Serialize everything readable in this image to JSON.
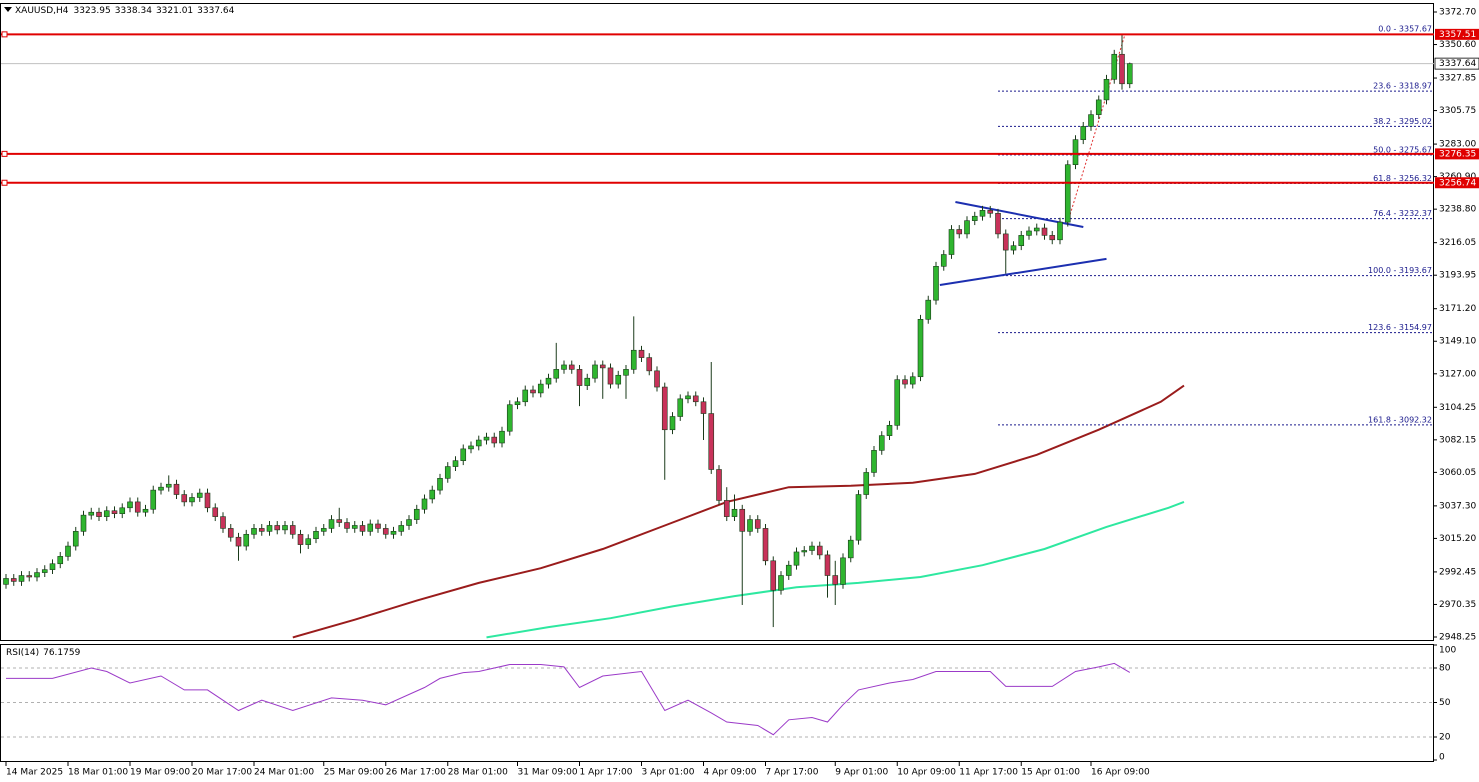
{
  "chart_data": {
    "type": "candlestick",
    "symbol": "XAUUSD,H4",
    "open": [
      2984,
      2988,
      2986,
      2990,
      2989,
      2992,
      2994,
      2998,
      3003,
      3010,
      3020,
      3031,
      3033,
      3030,
      3034,
      3032,
      3036,
      3040,
      3033,
      3035,
      3048,
      3050,
      3052,
      3045,
      3040,
      3043,
      3046,
      3036,
      3030,
      3022,
      3016,
      3010,
      3018,
      3022,
      3020,
      3024,
      3021,
      3024,
      3018,
      3011,
      3015,
      3020,
      3022,
      3028,
      3026,
      3022,
      3024,
      3020,
      3025,
      3022,
      3018,
      3020,
      3024,
      3028,
      3035,
      3042,
      3048,
      3056,
      3064,
      3068,
      3076,
      3078,
      3082,
      3084,
      3080,
      3088,
      3106,
      3108,
      3116,
      3114,
      3120,
      3124,
      3130,
      3133,
      3130,
      3119,
      3124,
      3133,
      3131,
      3120,
      3126,
      3130,
      3143,
      3138,
      3129,
      3118,
      3089,
      3098,
      3110,
      3112,
      3108,
      3100,
      3062,
      3041,
      3030,
      3035,
      3020,
      3028,
      3022,
      3000,
      2980,
      2990,
      2997,
      3006,
      3007,
      3010,
      3004,
      2990,
      2984,
      3002,
      3014,
      3045,
      3060,
      3075,
      3085,
      3092,
      3123,
      3120,
      3125,
      3164,
      3177,
      3200,
      3208,
      3225,
      3222,
      3231,
      3234,
      3238,
      3236,
      3222,
      3211,
      3214,
      3221,
      3224,
      3226,
      3221,
      3218,
      3230,
      3269,
      3286,
      3295,
      3303,
      3313,
      3327,
      3344,
      3323.95
    ],
    "high": [
      2991,
      2991,
      2993,
      2993,
      2995,
      2997,
      3001,
      3006,
      3013,
      3023,
      3034,
      3036,
      3036,
      3037,
      3037,
      3039,
      3043,
      3043,
      3038,
      3051,
      3053,
      3058,
      3055,
      3048,
      3046,
      3049,
      3049,
      3039,
      3033,
      3025,
      3019,
      3021,
      3025,
      3025,
      3027,
      3027,
      3027,
      3027,
      3021,
      3018,
      3023,
      3025,
      3031,
      3036,
      3029,
      3027,
      3027,
      3028,
      3028,
      3025,
      3023,
      3027,
      3031,
      3038,
      3045,
      3051,
      3059,
      3067,
      3071,
      3079,
      3081,
      3085,
      3087,
      3087,
      3091,
      3109,
      3111,
      3119,
      3119,
      3123,
      3127,
      3148,
      3136,
      3136,
      3133,
      3127,
      3136,
      3136,
      3134,
      3129,
      3133,
      3166,
      3146,
      3141,
      3132,
      3121,
      3101,
      3113,
      3115,
      3115,
      3111,
      3135,
      3065,
      3050,
      3045,
      3038,
      3031,
      3031,
      3025,
      3003,
      2993,
      3000,
      3009,
      3010,
      3013,
      3013,
      3007,
      3000,
      3005,
      3017,
      3048,
      3063,
      3078,
      3088,
      3095,
      3126,
      3126,
      3128,
      3167,
      3180,
      3203,
      3211,
      3228,
      3228,
      3234,
      3237,
      3241,
      3241,
      3239,
      3225,
      3217,
      3224,
      3227,
      3229,
      3229,
      3224,
      3233,
      3272,
      3289,
      3298,
      3306,
      3316,
      3330,
      3347,
      3357.51,
      3338.34
    ],
    "low": [
      2981,
      2983,
      2983,
      2986,
      2986,
      2989,
      2991,
      2995,
      3000,
      3007,
      3017,
      3028,
      3027,
      3027,
      3029,
      3029,
      3033,
      3030,
      3030,
      3032,
      3045,
      3047,
      3042,
      3037,
      3037,
      3040,
      3033,
      3027,
      3019,
      3013,
      3000,
      3007,
      3015,
      3017,
      3017,
      3018,
      3018,
      3015,
      3005,
      3008,
      3012,
      3017,
      3019,
      3023,
      3019,
      3019,
      3017,
      3017,
      3019,
      3015,
      3015,
      3017,
      3021,
      3025,
      3032,
      3039,
      3045,
      3053,
      3061,
      3065,
      3073,
      3075,
      3079,
      3077,
      3077,
      3085,
      3103,
      3105,
      3111,
      3111,
      3117,
      3121,
      3127,
      3127,
      3105,
      3116,
      3121,
      3110,
      3117,
      3117,
      3110,
      3127,
      3135,
      3126,
      3115,
      3055,
      3086,
      3095,
      3107,
      3105,
      3082,
      3059,
      3038,
      3027,
      3027,
      2970,
      3017,
      3019,
      2997,
      2955,
      2977,
      2987,
      2994,
      3003,
      3004,
      3001,
      2975,
      2970,
      2981,
      2999,
      3011,
      3042,
      3057,
      3072,
      3082,
      3089,
      3117,
      3117,
      3122,
      3161,
      3174,
      3197,
      3205,
      3219,
      3219,
      3228,
      3231,
      3233,
      3219,
      3195,
      3208,
      3211,
      3218,
      3221,
      3218,
      3215,
      3215,
      3227,
      3266,
      3283,
      3292,
      3300,
      3310,
      3324,
      3320,
      3321.01
    ],
    "close": [
      2988,
      2986,
      2990,
      2989,
      2992,
      2994,
      2998,
      3003,
      3010,
      3020,
      3031,
      3033,
      3030,
      3034,
      3032,
      3036,
      3040,
      3033,
      3035,
      3048,
      3050,
      3052,
      3045,
      3040,
      3043,
      3046,
      3036,
      3030,
      3022,
      3016,
      3010,
      3018,
      3022,
      3020,
      3024,
      3021,
      3024,
      3018,
      3011,
      3015,
      3020,
      3022,
      3028,
      3026,
      3022,
      3024,
      3020,
      3025,
      3022,
      3018,
      3020,
      3024,
      3028,
      3035,
      3042,
      3048,
      3056,
      3064,
      3068,
      3076,
      3078,
      3082,
      3084,
      3080,
      3088,
      3106,
      3108,
      3116,
      3114,
      3120,
      3124,
      3130,
      3133,
      3130,
      3119,
      3124,
      3133,
      3131,
      3120,
      3126,
      3130,
      3143,
      3138,
      3129,
      3118,
      3089,
      3098,
      3110,
      3112,
      3108,
      3100,
      3062,
      3041,
      3030,
      3035,
      3020,
      3028,
      3022,
      3000,
      2980,
      2990,
      2997,
      3006,
      3007,
      3010,
      3004,
      2990,
      2984,
      3002,
      3014,
      3045,
      3060,
      3075,
      3085,
      3092,
      3123,
      3120,
      3125,
      3164,
      3177,
      3200,
      3208,
      3225,
      3222,
      3231,
      3234,
      3238,
      3236,
      3222,
      3211,
      3214,
      3221,
      3224,
      3226,
      3221,
      3218,
      3230,
      3269,
      3286,
      3295,
      3303,
      3313,
      3327,
      3344,
      3323.95,
      3337.64
    ],
    "up_color": "#2fb52f",
    "down_color": "#c8325a",
    "ylim": [
      2948.25,
      3372.7
    ],
    "yticks": [
      {
        "value": 3372.7,
        "label": "3372.70"
      },
      {
        "value": 3350.6,
        "label": "3350.60"
      },
      {
        "value": 3327.85,
        "label": "3327.85"
      },
      {
        "value": 3305.75,
        "label": "3305.75"
      },
      {
        "value": 3283,
        "label": "3283.00"
      },
      {
        "value": 3260.9,
        "label": "3260.90"
      },
      {
        "value": 3238.8,
        "label": "3238.80"
      },
      {
        "value": 3216.05,
        "label": "3216.05"
      },
      {
        "value": 3193.95,
        "label": "3193.95"
      },
      {
        "value": 3171.2,
        "label": "3171.20"
      },
      {
        "value": 3149.1,
        "label": "3149.10"
      },
      {
        "value": 3127,
        "label": "3127.00"
      },
      {
        "value": 3104.25,
        "label": "3104.25"
      },
      {
        "value": 3082.15,
        "label": "3082.15"
      },
      {
        "value": 3060.05,
        "label": "3060.05"
      },
      {
        "value": 3037.3,
        "label": "3037.30"
      },
      {
        "value": 3015.2,
        "label": "3015.20"
      },
      {
        "value": 2992.45,
        "label": "2992.45"
      },
      {
        "value": 2970.35,
        "label": "2970.35"
      },
      {
        "value": 2948.25,
        "label": "2948.25"
      }
    ],
    "xticks": [
      {
        "value": 0,
        "label": "14 Mar 2025"
      },
      {
        "value": 8,
        "label": "18 Mar 01:00"
      },
      {
        "value": 16,
        "label": "19 Mar 09:00"
      },
      {
        "value": 24,
        "label": "20 Mar 17:00"
      },
      {
        "value": 32,
        "label": "24 Mar 01:00"
      },
      {
        "value": 41,
        "label": "25 Mar 09:00"
      },
      {
        "value": 49,
        "label": "26 Mar 17:00"
      },
      {
        "value": 57,
        "label": "28 Mar 01:00"
      },
      {
        "value": 66,
        "label": "31 Mar 09:00"
      },
      {
        "value": 74,
        "label": "1 Apr 17:00"
      },
      {
        "value": 82,
        "label": "3 Apr 01:00"
      },
      {
        "value": 90,
        "label": "4 Apr 09:00"
      },
      {
        "value": 98,
        "label": "7 Apr 17:00"
      },
      {
        "value": 107,
        "label": "9 Apr 01:00"
      },
      {
        "value": 115,
        "label": "10 Apr 09:00"
      },
      {
        "value": 123,
        "label": "11 Apr 17:00"
      },
      {
        "value": 131,
        "label": "15 Apr 01:00"
      },
      {
        "value": 140,
        "label": "16 Apr 09:00"
      }
    ],
    "moving_averages": [
      {
        "color": "#9a1c1c",
        "x": [
          37,
          45,
          53,
          61,
          69,
          77,
          85,
          93,
          101,
          109,
          117,
          125,
          133,
          141,
          149,
          152
        ],
        "values": [
          2948,
          2960,
          2973,
          2985,
          2995,
          3008,
          3024,
          3040,
          3050,
          3051,
          3053,
          3059,
          3072,
          3089,
          3108,
          3119
        ]
      },
      {
        "color": "#2ee8a0",
        "x": [
          62,
          70,
          78,
          86,
          94,
          102,
          110,
          118,
          126,
          134,
          142,
          150,
          152
        ],
        "values": [
          2948,
          2955,
          2961,
          2969,
          2976,
          2982,
          2985,
          2989,
          2997,
          3008,
          3023,
          3036,
          3040
        ]
      }
    ],
    "levels": [
      3357.51,
      3276.35,
      3256.74
    ],
    "level_color": "#e00000",
    "fibonacci": {
      "start": 128,
      "color": "#1a1a8c",
      "levels": [
        {
          "label": "0.0 - 3357.67",
          "value": 3357.67
        },
        {
          "label": "23.6 - 3318.97",
          "value": 3318.97
        },
        {
          "label": "38.2 - 3295.02",
          "value": 3295.02
        },
        {
          "label": "50.0 - 3275.67",
          "value": 3275.67
        },
        {
          "label": "61.8 - 3256.32",
          "value": 3256.32
        },
        {
          "label": "76.4 - 3232.37",
          "value": 3232.37
        },
        {
          "label": "100.0 - 3193.67",
          "value": 3193.67
        },
        {
          "label": "123.6 - 3154.97",
          "value": 3154.97
        },
        {
          "label": "161.8 - 3092.32",
          "value": 3092.32
        }
      ],
      "line": {
        "x": [
          137,
          144.4
        ],
        "values": [
          3230,
          3357.67
        ]
      }
    },
    "trendlines": [
      {
        "color": "#1c2fb0",
        "x": [
          122.5,
          139
        ],
        "values": [
          3243.7,
          3226.7
        ]
      },
      {
        "color": "#1c2fb0",
        "x": [
          120.5,
          142
        ],
        "values": [
          3187.3,
          3205
        ]
      }
    ],
    "rsi": {
      "label": "RSI(14)",
      "color": "#9b3ac8",
      "ylim": [
        0,
        100
      ],
      "yticks": [
        100,
        80,
        50,
        20,
        0
      ],
      "levels": [
        80,
        50,
        20
      ],
      "x": [
        0,
        6,
        11,
        13,
        16,
        20,
        23,
        26,
        30,
        33,
        37,
        42,
        46,
        49,
        54,
        56,
        59,
        61,
        65,
        69,
        72,
        74,
        77,
        82,
        85,
        88,
        91,
        93,
        97,
        99,
        101,
        104,
        106,
        108,
        110,
        114,
        117,
        120,
        123,
        127,
        129,
        135,
        138,
        141,
        143,
        145
      ],
      "values": [
        71,
        71,
        80,
        77,
        67,
        73,
        61,
        61,
        43,
        52,
        43,
        54,
        52,
        48,
        63,
        71,
        76,
        77,
        83,
        83,
        81,
        63,
        73,
        77,
        43,
        52,
        41,
        33,
        30,
        22,
        35,
        37,
        33,
        48,
        61,
        67,
        70,
        77,
        77,
        77,
        64,
        64,
        77,
        81,
        84,
        76.1759
      ]
    }
  }
}
